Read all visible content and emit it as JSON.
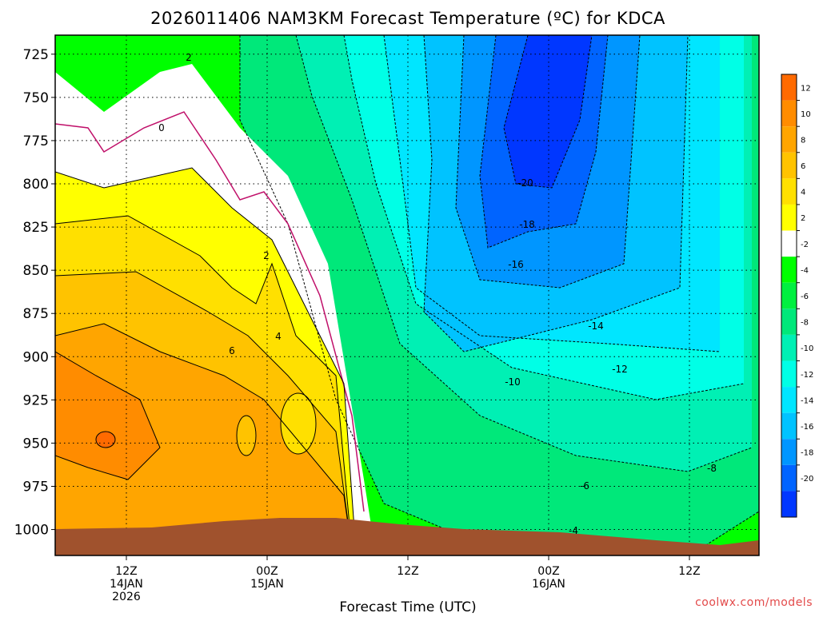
{
  "chart_data": {
    "type": "heatmap",
    "title": "2026011406 NAM3KM Forecast Temperature (ºC) for KDCA",
    "xlabel": "Forecast Time (UTC)",
    "ylabel": "",
    "x_ticks": [
      {
        "lines": [
          "12Z",
          "14JAN",
          "2026"
        ]
      },
      {
        "lines": [
          "00Z",
          "15JAN"
        ]
      },
      {
        "lines": [
          "12Z"
        ]
      },
      {
        "lines": [
          "00Z",
          "16JAN"
        ]
      },
      {
        "lines": [
          "12Z"
        ]
      }
    ],
    "y_ticks": [
      "725",
      "750",
      "775",
      "800",
      "825",
      "850",
      "875",
      "900",
      "925",
      "950",
      "975",
      "1000"
    ],
    "ylim": [
      1015,
      714
    ],
    "colorbar_labels": [
      "12",
      "10",
      "8",
      "6",
      "4",
      "2",
      "-2",
      "-4",
      "-6",
      "-8",
      "-10",
      "-12",
      "-14",
      "-16",
      "-18",
      "-20"
    ],
    "colorbar_colors": [
      "#ff6a00",
      "#ff8c00",
      "#ffa500",
      "#ffc300",
      "#ffe000",
      "#ffff00",
      "#ffffff",
      "#00ff00",
      "#00f040",
      "#00e87a",
      "#00f0b4",
      "#00ffe6",
      "#00e6ff",
      "#00c3ff",
      "#0096ff",
      "#0064ff",
      "#0037ff"
    ],
    "contour_labels": [
      "2",
      "0",
      "2",
      "4",
      "6",
      "-20",
      "-18",
      "-16",
      "-14",
      "-12",
      "-10",
      "-8",
      "-6",
      "-4"
    ],
    "credit": "coolwx.com/models"
  }
}
